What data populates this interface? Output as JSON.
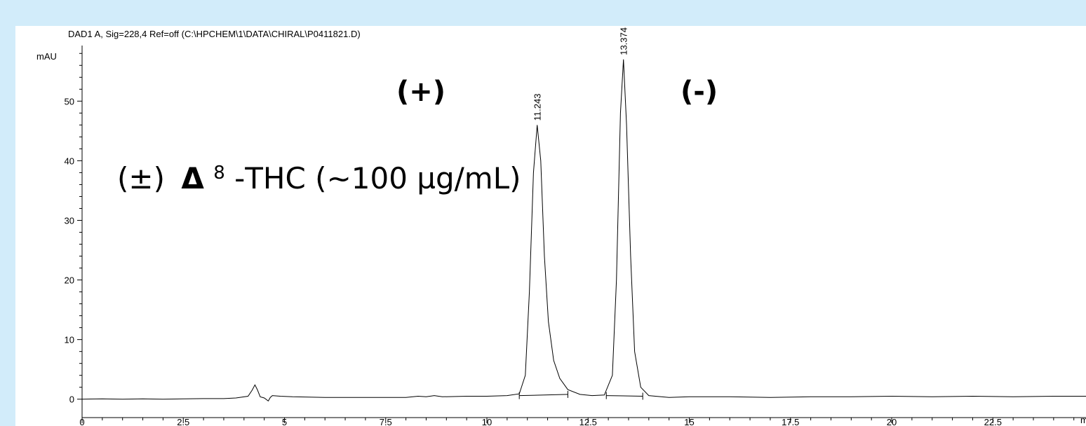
{
  "background_color": "#d2ecfa",
  "chart_data": {
    "type": "line",
    "title": "DAD1 A, Sig=228,4 Ref=off (C:\\HPCHEM\\1\\DATA\\CHIRAL\\P0411821.D)",
    "ylabel": "mAU",
    "xlabel": "m",
    "xlim": [
      0,
      24.8
    ],
    "ylim": [
      -2.5,
      60.5
    ],
    "x_ticks": [
      0,
      2.5,
      5,
      7.5,
      10,
      12.5,
      15,
      17.5,
      20,
      22.5
    ],
    "x_tick_labels": [
      "0",
      "2.5",
      "5",
      "7.5",
      "10",
      "12.5",
      "15",
      "17.5",
      "20",
      "22.5"
    ],
    "y_ticks": [
      0,
      10,
      20,
      30,
      40,
      50
    ],
    "y_tick_labels": [
      "0",
      "10",
      "20",
      "30",
      "40",
      "50"
    ],
    "grid": false,
    "series": [
      {
        "x": [
          0,
          0.5,
          1,
          1.5,
          2,
          2.5,
          3,
          3.5,
          3.8,
          4.1,
          4.2,
          4.27,
          4.33,
          4.4,
          4.5,
          4.6,
          4.65,
          4.7,
          4.9,
          5.2,
          6,
          7,
          8,
          8.3,
          8.5,
          8.7,
          8.9,
          9.5,
          10,
          10.5,
          10.8,
          10.95,
          11.05,
          11.15,
          11.243,
          11.33,
          11.42,
          11.52,
          11.65,
          11.8,
          12,
          12.3,
          12.6,
          12.9,
          13.1,
          13.2,
          13.3,
          13.374,
          13.45,
          13.55,
          13.65,
          13.8,
          14,
          14.5,
          15,
          16,
          17,
          18,
          19,
          20,
          21,
          22,
          23,
          24,
          24.8
        ],
        "y": [
          0.0,
          0.05,
          0.0,
          0.05,
          0.0,
          0.05,
          0.1,
          0.1,
          0.2,
          0.5,
          1.5,
          2.4,
          1.6,
          0.4,
          0.2,
          -0.3,
          0.3,
          0.6,
          0.5,
          0.4,
          0.3,
          0.3,
          0.3,
          0.5,
          0.4,
          0.6,
          0.4,
          0.5,
          0.5,
          0.6,
          0.9,
          4,
          18,
          38,
          46,
          40,
          24,
          13,
          6.5,
          3.5,
          1.6,
          0.8,
          0.6,
          0.7,
          4,
          20,
          48,
          57,
          46,
          24,
          8,
          2,
          0.6,
          0.3,
          0.4,
          0.4,
          0.3,
          0.4,
          0.4,
          0.5,
          0.4,
          0.5,
          0.4,
          0.5,
          0.5
        ]
      }
    ],
    "peaks": [
      {
        "x": 11.243,
        "y": 46,
        "label": "11.243"
      },
      {
        "x": 13.374,
        "y": 57,
        "label": "13.374"
      }
    ],
    "baselines": [
      {
        "x": [
          10.8,
          12.0
        ],
        "y": [
          0.6,
          0.8
        ]
      },
      {
        "x": [
          12.95,
          13.85
        ],
        "y": [
          0.6,
          0.5
        ]
      }
    ],
    "annotations": {
      "plus": "(+)",
      "minus": "(-)",
      "sample_paren_open": "(±)",
      "sample_delta": "Δ",
      "sample_superscript": "8",
      "sample_rest": "-THC (~100 µg/mL)"
    }
  }
}
